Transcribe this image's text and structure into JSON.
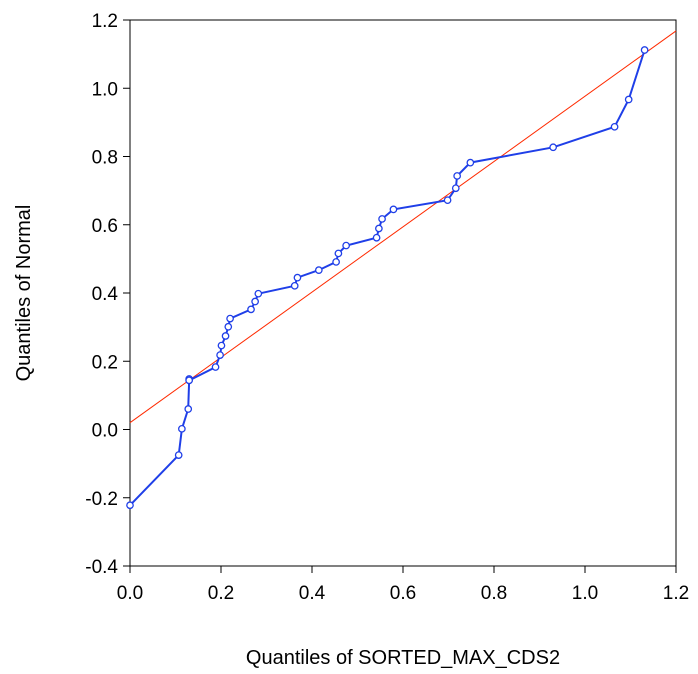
{
  "chart_data": {
    "type": "scatter",
    "title": "",
    "xlabel": "Quantiles of SORTED_MAX_CDS2",
    "ylabel": "Quantiles of Normal",
    "xlim": [
      0.0,
      1.2
    ],
    "ylim": [
      -0.4,
      1.2
    ],
    "x_ticks": [
      "0.0",
      "0.2",
      "0.4",
      "0.6",
      "0.8",
      "1.0",
      "1.2"
    ],
    "y_ticks": [
      "-0.4",
      "-0.2",
      "0.0",
      "0.2",
      "0.4",
      "0.6",
      "0.8",
      "1.0",
      "1.2"
    ],
    "grid": false,
    "legend": "none",
    "series": [
      {
        "color": "#1f3fe8",
        "style": "line-with-hollow-markers",
        "x": [
          0.0,
          0.107,
          0.114,
          0.128,
          0.13,
          0.13,
          0.188,
          0.198,
          0.201,
          0.21,
          0.216,
          0.22,
          0.266,
          0.275,
          0.282,
          0.362,
          0.368,
          0.415,
          0.453,
          0.458,
          0.475,
          0.542,
          0.547,
          0.554,
          0.579,
          0.698,
          0.716,
          0.719,
          0.748,
          0.93,
          1.065,
          1.096,
          1.131
        ],
        "y": [
          -0.222,
          -0.075,
          0.002,
          0.06,
          0.148,
          0.144,
          0.183,
          0.218,
          0.246,
          0.274,
          0.301,
          0.325,
          0.352,
          0.375,
          0.398,
          0.421,
          0.445,
          0.467,
          0.491,
          0.516,
          0.539,
          0.562,
          0.589,
          0.617,
          0.645,
          0.672,
          0.707,
          0.743,
          0.782,
          0.827,
          0.887,
          0.967,
          1.112
        ]
      },
      {
        "color": "#ff2a00",
        "style": "reference-line",
        "x": [
          0.0,
          1.2
        ],
        "y": [
          0.02,
          1.168
        ]
      }
    ]
  }
}
